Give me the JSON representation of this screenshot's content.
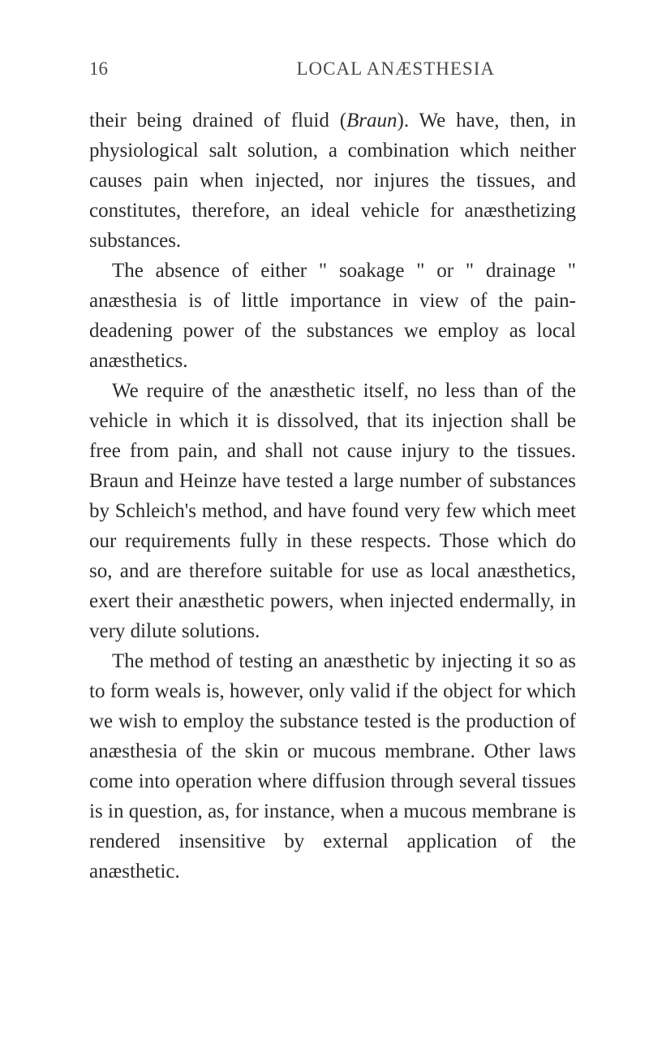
{
  "header": {
    "page_number": "16",
    "title": "LOCAL ANÆSTHESIA"
  },
  "paragraphs": {
    "p1": "their being drained of fluid (",
    "p1_italic": "Braun",
    "p1_end": "). We have, then, in physiological salt solution, a combination which neither causes pain when injected, nor injures the tissues, and constitutes, therefore, an ideal vehicle for anæsthetizing substances.",
    "p2": "The absence of either \" soakage \" or \" drainage \" anæsthesia is of little importance in view of the pain-deadening power of the substances we employ as local anæsthetics.",
    "p3": "We require of the anæsthetic itself, no less than of the vehicle in which it is dissolved, that its injection shall be free from pain, and shall not cause injury to the tissues. Braun and Heinze have tested a large number of substances by Schleich's method, and have found very few which meet our requirements fully in these respects. Those which do so, and are therefore suitable for use as local anæsthetics, exert their anæsthetic powers, when injected endermally, in very dilute solutions.",
    "p4": "The method of testing an anæsthetic by injecting it so as to form weals is, however, only valid if the object for which we wish to employ the sub­stance tested is the production of anæsthesia of the skin or mucous membrane. Other laws come into operation where diffusion through several tissues is in question, as, for instance, when a mucous membrane is rendered insensitive by external application of the anæsthetic."
  }
}
